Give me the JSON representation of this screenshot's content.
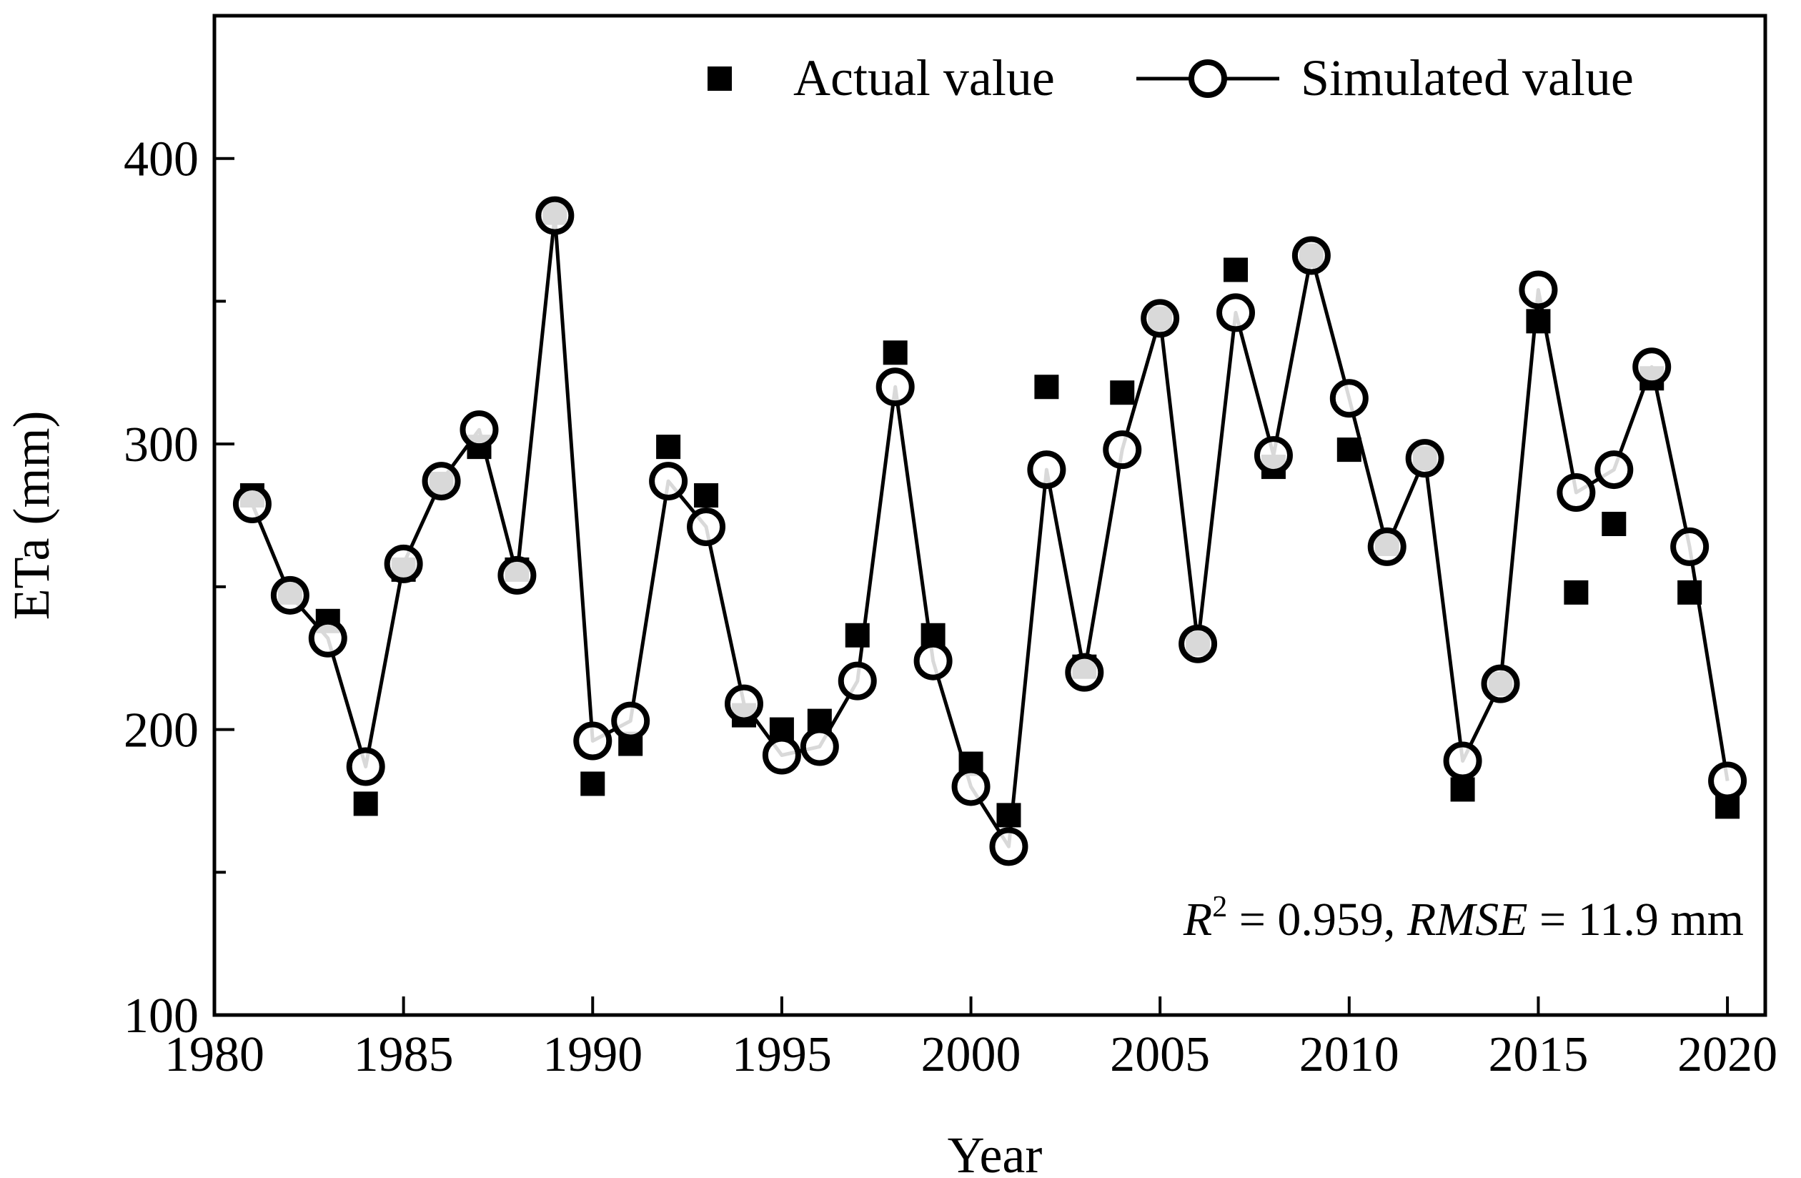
{
  "chart_data": {
    "type": "line",
    "xlabel": "Year",
    "ylabel": "ETa (mm)",
    "xlim": [
      1980,
      2021
    ],
    "ylim": [
      100,
      450
    ],
    "x_ticks": [
      1980,
      1985,
      1990,
      1995,
      2000,
      2005,
      2010,
      2015,
      2020
    ],
    "y_ticks": [
      100,
      200,
      300,
      400
    ],
    "y_minor_ticks": [
      150,
      250,
      350
    ],
    "grid": false,
    "legend_position": "top-right",
    "x": [
      1981,
      1982,
      1983,
      1984,
      1985,
      1986,
      1987,
      1988,
      1989,
      1990,
      1991,
      1992,
      1993,
      1994,
      1995,
      1996,
      1997,
      1998,
      1999,
      2000,
      2001,
      2002,
      2003,
      2004,
      2005,
      2006,
      2007,
      2008,
      2009,
      2010,
      2011,
      2012,
      2013,
      2014,
      2015,
      2016,
      2017,
      2018,
      2019,
      2020
    ],
    "series": [
      {
        "name": "Actual value",
        "style": "square",
        "color": "#000000",
        "values": [
          282,
          248,
          238,
          174,
          256,
          286,
          299,
          256,
          381,
          181,
          195,
          299,
          282,
          205,
          200,
          203,
          233,
          332,
          233,
          188,
          170,
          320,
          222,
          318,
          344,
          230,
          361,
          292,
          366,
          298,
          265,
          295,
          179,
          216,
          343,
          248,
          272,
          323,
          248,
          173
        ]
      },
      {
        "name": "Simulated value",
        "style": "line-open-circle",
        "color": "#000000",
        "values": [
          279,
          247,
          232,
          187,
          258,
          287,
          305,
          254,
          380,
          196,
          203,
          287,
          271,
          209,
          191,
          194,
          217,
          320,
          224,
          180,
          159,
          291,
          220,
          298,
          344,
          230,
          346,
          296,
          366,
          316,
          264,
          295,
          189,
          216,
          354,
          283,
          291,
          327,
          264,
          182
        ]
      }
    ],
    "legend_labels": {
      "actual": "Actual value",
      "simulated": "Simulated value"
    },
    "annotation": {
      "r2_symbol": "R",
      "r2_sup": "2",
      "r2_text": " = 0.959,  ",
      "rmse_symbol": "RMSE",
      "rmse_text": " = 11.9 mm"
    }
  }
}
